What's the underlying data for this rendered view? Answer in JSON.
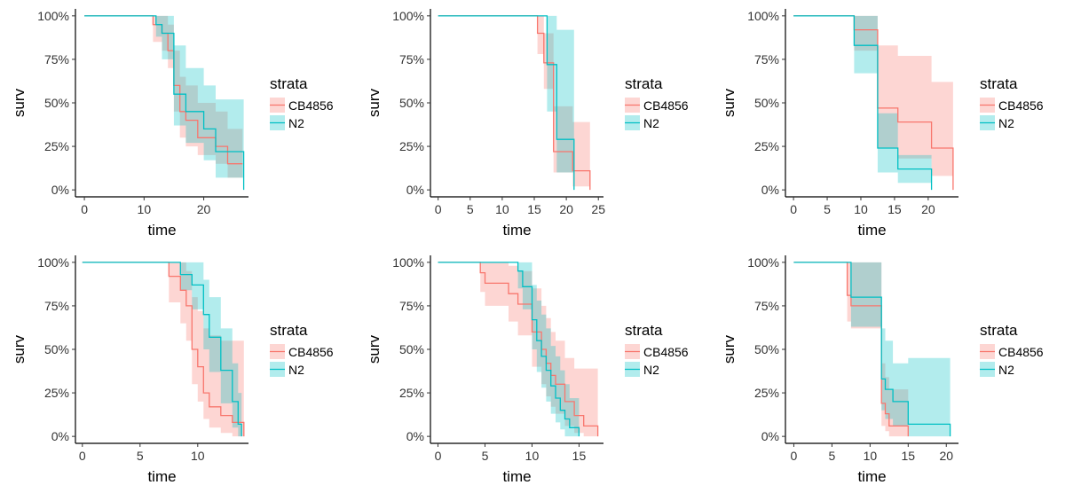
{
  "colors": {
    "CB4856": "#F8766D",
    "CB4856_band": "#FFC4C1",
    "N2": "#00BFC4",
    "N2_band": "#9FE3E6",
    "overlap": "#A5B8B5",
    "axis": "#000000"
  },
  "chart_data": [
    {
      "type": "line",
      "step": true,
      "xlabel": "time",
      "ylabel": "surv",
      "xlim": [
        -1.5,
        27.5
      ],
      "xticks": [
        0,
        10,
        20
      ],
      "ylim": [
        -0.04,
        1.04
      ],
      "yticks": [
        0,
        0.25,
        0.5,
        0.75,
        1
      ],
      "ytick_labels": [
        "0%",
        "25%",
        "50%",
        "75%",
        "100%"
      ],
      "legend": {
        "title": "strata",
        "position": "right",
        "entries": [
          "CB4856",
          "N2"
        ]
      },
      "series": [
        {
          "name": "CB4856",
          "x": [
            0,
            11.5,
            13,
            14,
            15,
            16,
            17,
            19,
            22,
            24,
            26.5
          ],
          "y": [
            1,
            0.95,
            0.9,
            0.8,
            0.6,
            0.45,
            0.4,
            0.3,
            0.25,
            0.15,
            0.15
          ],
          "lower": [
            1,
            0.85,
            0.8,
            0.7,
            0.45,
            0.3,
            0.25,
            0.2,
            0.15,
            0.07,
            0.07
          ],
          "upper": [
            1,
            1,
            1,
            0.95,
            0.8,
            0.65,
            0.6,
            0.5,
            0.45,
            0.35,
            0.35
          ]
        },
        {
          "name": "N2",
          "x": [
            0,
            12,
            13,
            15,
            17,
            20,
            22,
            26.5,
            26.7
          ],
          "y": [
            1,
            0.95,
            0.9,
            0.55,
            0.45,
            0.35,
            0.22,
            0.22,
            0
          ],
          "lower": [
            1,
            0.88,
            0.75,
            0.37,
            0.27,
            0.17,
            0.07,
            0.07,
            0
          ],
          "upper": [
            1,
            1,
            1,
            0.83,
            0.7,
            0.6,
            0.52,
            0.52,
            0
          ]
        }
      ]
    },
    {
      "type": "line",
      "step": true,
      "xlabel": "time",
      "ylabel": "surv",
      "xlim": [
        -1.2,
        25.8
      ],
      "xticks": [
        0,
        5,
        10,
        15,
        20,
        25
      ],
      "ylim": [
        -0.04,
        1.04
      ],
      "yticks": [
        0,
        0.25,
        0.5,
        0.75,
        1
      ],
      "ytick_labels": [
        "0%",
        "25%",
        "50%",
        "75%",
        "100%"
      ],
      "legend": {
        "title": "strata",
        "position": "right",
        "entries": [
          "CB4856",
          "N2"
        ]
      },
      "series": [
        {
          "name": "CB4856",
          "x": [
            0,
            15.5,
            16.5,
            18,
            21,
            23.5,
            23.7
          ],
          "y": [
            1,
            0.9,
            0.73,
            0.22,
            0.11,
            0.11,
            0
          ],
          "lower": [
            1,
            0.78,
            0.58,
            0.1,
            0.02,
            0.02,
            0
          ],
          "upper": [
            1,
            1,
            0.9,
            0.48,
            0.39,
            0.39,
            0
          ]
        },
        {
          "name": "N2",
          "x": [
            0,
            16,
            17,
            18.5,
            21,
            21.2
          ],
          "y": [
            1,
            1,
            0.72,
            0.29,
            0.29,
            0
          ],
          "lower": [
            1,
            1,
            0.45,
            0.1,
            0.1,
            0
          ],
          "upper": [
            1,
            1,
            1,
            0.92,
            0.92,
            0
          ]
        }
      ]
    },
    {
      "type": "line",
      "step": true,
      "xlabel": "time",
      "ylabel": "surv",
      "xlim": [
        -1.2,
        24.5
      ],
      "xticks": [
        0,
        5,
        10,
        15,
        20
      ],
      "ylim": [
        -0.04,
        1.04
      ],
      "yticks": [
        0,
        0.25,
        0.5,
        0.75,
        1
      ],
      "ytick_labels": [
        "0%",
        "25%",
        "50%",
        "75%",
        "100%"
      ],
      "legend": {
        "title": "strata",
        "position": "right",
        "entries": [
          "CB4856",
          "N2"
        ]
      },
      "series": [
        {
          "name": "CB4856",
          "x": [
            0,
            9,
            12.5,
            15.5,
            20.5,
            23.5,
            23.7
          ],
          "y": [
            1,
            0.92,
            0.47,
            0.39,
            0.24,
            0.24,
            0
          ],
          "lower": [
            1,
            0.8,
            0.24,
            0.18,
            0.08,
            0.08,
            0
          ],
          "upper": [
            1,
            1,
            0.83,
            0.77,
            0.62,
            0.62,
            0
          ]
        },
        {
          "name": "N2",
          "x": [
            0,
            9,
            12.5,
            15.5,
            20.5
          ],
          "y": [
            1,
            0.83,
            0.24,
            0.12,
            0
          ],
          "lower": [
            1,
            0.67,
            0.1,
            0.04,
            0
          ],
          "upper": [
            1,
            1,
            0.44,
            0.2,
            0
          ]
        }
      ]
    },
    {
      "type": "line",
      "step": true,
      "xlabel": "time",
      "ylabel": "surv",
      "xlim": [
        -0.6,
        14.4
      ],
      "xticks": [
        0,
        5,
        10
      ],
      "ylim": [
        -0.04,
        1.04
      ],
      "yticks": [
        0,
        0.25,
        0.5,
        0.75,
        1
      ],
      "ytick_labels": [
        "0%",
        "25%",
        "50%",
        "75%",
        "100%"
      ],
      "legend": {
        "title": "strata",
        "position": "right",
        "entries": [
          "CB4856",
          "N2"
        ]
      },
      "series": [
        {
          "name": "CB4856",
          "x": [
            0,
            7.5,
            8.5,
            9,
            9.5,
            10,
            10.5,
            11,
            12,
            13,
            14
          ],
          "y": [
            1,
            0.92,
            0.84,
            0.75,
            0.5,
            0.4,
            0.25,
            0.17,
            0.12,
            0.08,
            0
          ],
          "lower": [
            1,
            0.77,
            0.65,
            0.55,
            0.3,
            0.2,
            0.1,
            0.05,
            0.02,
            0,
            0
          ],
          "upper": [
            1,
            1,
            1,
            0.95,
            0.8,
            0.72,
            0.62,
            0.58,
            0.55,
            0.55,
            0
          ]
        },
        {
          "name": "N2",
          "x": [
            0,
            8.5,
            9.5,
            10.5,
            11,
            12,
            13,
            13.5,
            13.8
          ],
          "y": [
            1,
            0.93,
            0.87,
            0.7,
            0.57,
            0.38,
            0.2,
            0.07,
            0
          ],
          "lower": [
            1,
            0.84,
            0.73,
            0.5,
            0.37,
            0.19,
            0.05,
            0,
            0
          ],
          "upper": [
            1,
            1,
            1,
            0.9,
            0.8,
            0.62,
            0.42,
            0.25,
            0
          ]
        }
      ]
    },
    {
      "type": "line",
      "step": true,
      "xlabel": "time",
      "ylabel": "surv",
      "xlim": [
        -0.8,
        17.6
      ],
      "xticks": [
        0,
        5,
        10,
        15
      ],
      "ylim": [
        -0.04,
        1.04
      ],
      "yticks": [
        0,
        0.25,
        0.5,
        0.75,
        1
      ],
      "ytick_labels": [
        "0%",
        "25%",
        "50%",
        "75%",
        "100%"
      ],
      "legend": {
        "title": "strata",
        "position": "right",
        "entries": [
          "CB4856",
          "N2"
        ]
      },
      "series": [
        {
          "name": "CB4856",
          "x": [
            0,
            4.5,
            5,
            7.5,
            8.5,
            10,
            11,
            11.5,
            12,
            12.5,
            13.5,
            14.5,
            15.5,
            17
          ],
          "y": [
            1,
            0.94,
            0.88,
            0.82,
            0.76,
            0.6,
            0.5,
            0.42,
            0.35,
            0.3,
            0.2,
            0.12,
            0.06,
            0
          ],
          "lower": [
            1,
            0.83,
            0.75,
            0.66,
            0.58,
            0.4,
            0.3,
            0.23,
            0.17,
            0.13,
            0.06,
            0.02,
            0,
            0
          ],
          "upper": [
            1,
            1,
            1,
            0.98,
            0.95,
            0.85,
            0.75,
            0.68,
            0.6,
            0.55,
            0.45,
            0.39,
            0.39,
            0
          ]
        },
        {
          "name": "N2",
          "x": [
            0,
            8.5,
            9,
            10,
            10.5,
            11,
            11.5,
            12,
            12.5,
            13,
            13.5,
            14,
            15
          ],
          "y": [
            1,
            0.95,
            0.86,
            0.67,
            0.55,
            0.46,
            0.38,
            0.29,
            0.22,
            0.15,
            0.1,
            0.05,
            0
          ],
          "lower": [
            1,
            0.85,
            0.73,
            0.5,
            0.37,
            0.28,
            0.2,
            0.13,
            0.08,
            0.04,
            0,
            0,
            0
          ],
          "upper": [
            1,
            1,
            1,
            0.87,
            0.78,
            0.7,
            0.62,
            0.52,
            0.46,
            0.38,
            0.3,
            0.22,
            0
          ]
        }
      ]
    },
    {
      "type": "line",
      "step": true,
      "xlabel": "time",
      "ylabel": "surv",
      "xlim": [
        -1.1,
        21.6
      ],
      "xticks": [
        0,
        5,
        10,
        15,
        20
      ],
      "ylim": [
        -0.04,
        1.04
      ],
      "yticks": [
        0,
        0.25,
        0.5,
        0.75,
        1
      ],
      "ytick_labels": [
        "0%",
        "25%",
        "50%",
        "75%",
        "100%"
      ],
      "legend": {
        "title": "strata",
        "position": "right",
        "entries": [
          "CB4856",
          "N2"
        ]
      },
      "series": [
        {
          "name": "CB4856",
          "x": [
            0,
            7,
            7.5,
            11.5,
            12,
            12.5,
            13,
            15
          ],
          "y": [
            1,
            0.81,
            0.75,
            0.19,
            0.13,
            0.06,
            0.06,
            0
          ],
          "lower": [
            1,
            0.66,
            0.62,
            0.06,
            0.03,
            0,
            0,
            0
          ],
          "upper": [
            1,
            1,
            1,
            0.42,
            0.34,
            0.27,
            0.27,
            0
          ]
        },
        {
          "name": "N2",
          "x": [
            0,
            7.5,
            11.5,
            12,
            13,
            15,
            20.5
          ],
          "y": [
            1,
            0.8,
            0.33,
            0.27,
            0.2,
            0.07,
            0
          ],
          "lower": [
            1,
            0.63,
            0.15,
            0.1,
            0.06,
            0,
            0
          ],
          "upper": [
            1,
            1,
            0.62,
            0.55,
            0.42,
            0.45,
            0
          ]
        }
      ]
    }
  ]
}
